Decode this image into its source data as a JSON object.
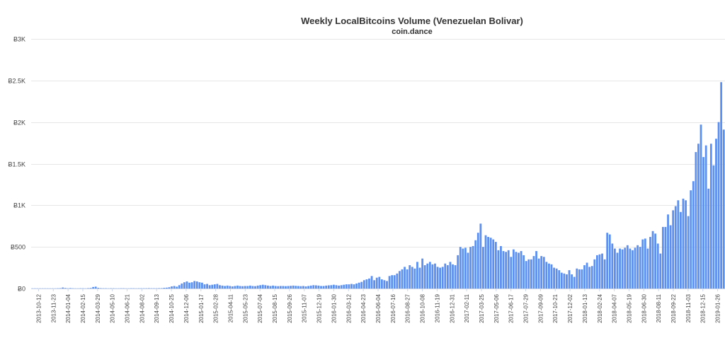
{
  "chart_data": {
    "type": "bar",
    "title": "Weekly LocalBitcoins Volume (Venezuelan Bolivar)",
    "subtitle": "coin.dance",
    "xlabel": "",
    "ylabel": "",
    "ylim": [
      0,
      3000
    ],
    "grid": true,
    "legend": "none",
    "color": "#5b8ff0",
    "y_ticks": [
      {
        "value": 0,
        "label": "Ƀ0"
      },
      {
        "value": 500,
        "label": "Ƀ500"
      },
      {
        "value": 1000,
        "label": "Ƀ1K"
      },
      {
        "value": 1500,
        "label": "Ƀ1.5K"
      },
      {
        "value": 2000,
        "label": "Ƀ2K"
      },
      {
        "value": 2500,
        "label": "Ƀ2.5K"
      },
      {
        "value": 3000,
        "label": "Ƀ3K"
      }
    ],
    "x_tick_labels": [
      "2013-10-12",
      "2013-11-23",
      "2014-01-04",
      "2014-02-15",
      "2014-03-29",
      "2014-05-10",
      "2014-06-21",
      "2014-08-02",
      "2014-09-13",
      "2014-10-25",
      "2014-12-06",
      "2015-01-17",
      "2015-02-28",
      "2015-04-11",
      "2015-05-23",
      "2015-07-04",
      "2015-08-15",
      "2015-09-26",
      "2015-11-07",
      "2015-12-19",
      "2016-01-30",
      "2016-03-12",
      "2016-04-23",
      "2016-06-04",
      "2016-07-16",
      "2016-08-27",
      "2016-10-08",
      "2016-11-19",
      "2016-12-31",
      "2017-02-11",
      "2017-03-25",
      "2017-05-06",
      "2017-06-17",
      "2017-07-29",
      "2017-09-09",
      "2017-10-21",
      "2017-12-02",
      "2018-01-13",
      "2018-02-24",
      "2018-04-07",
      "2018-05-19",
      "2018-06-30",
      "2018-08-11",
      "2018-09-22",
      "2018-11-03",
      "2018-12-15",
      "2019-01-26"
    ],
    "series": [
      {
        "values": [
          2,
          2,
          2,
          2,
          2,
          2,
          2,
          2,
          2,
          2,
          3,
          4,
          12,
          6,
          3,
          5,
          3,
          2,
          2,
          3,
          3,
          2,
          4,
          6,
          18,
          22,
          8,
          4,
          3,
          3,
          2,
          3,
          3,
          2,
          2,
          3,
          3,
          2,
          2,
          3,
          3,
          2,
          3,
          3,
          3,
          3,
          4,
          3,
          3,
          3,
          4,
          4,
          8,
          10,
          15,
          25,
          30,
          22,
          40,
          60,
          75,
          85,
          70,
          75,
          90,
          85,
          75,
          70,
          50,
          55,
          40,
          45,
          50,
          55,
          40,
          35,
          30,
          35,
          30,
          25,
          30,
          35,
          30,
          28,
          30,
          30,
          35,
          30,
          28,
          35,
          40,
          45,
          40,
          35,
          30,
          35,
          30,
          28,
          30,
          30,
          28,
          30,
          32,
          35,
          32,
          30,
          28,
          30,
          25,
          30,
          35,
          40,
          38,
          35,
          30,
          30,
          35,
          38,
          40,
          45,
          40,
          35,
          40,
          45,
          50,
          50,
          55,
          50,
          60,
          70,
          80,
          100,
          110,
          120,
          150,
          100,
          130,
          140,
          110,
          100,
          90,
          150,
          160,
          160,
          180,
          210,
          230,
          260,
          230,
          280,
          260,
          240,
          320,
          250,
          360,
          280,
          300,
          320,
          290,
          300,
          260,
          250,
          260,
          300,
          280,
          320,
          290,
          280,
          400,
          500,
          480,
          490,
          430,
          500,
          510,
          580,
          670,
          780,
          500,
          640,
          620,
          610,
          590,
          560,
          460,
          510,
          450,
          440,
          460,
          380,
          470,
          440,
          430,
          450,
          400,
          330,
          350,
          350,
          390,
          450,
          360,
          390,
          380,
          320,
          300,
          290,
          250,
          240,
          220,
          190,
          180,
          170,
          220,
          170,
          140,
          240,
          230,
          230,
          280,
          310,
          260,
          270,
          350,
          400,
          410,
          420,
          350,
          670,
          650,
          540,
          480,
          430,
          480,
          470,
          490,
          520,
          480,
          460,
          490,
          520,
          500,
          590,
          600,
          480,
          620,
          690,
          660,
          540,
          420,
          740,
          740,
          890,
          760,
          940,
          990,
          1060,
          920,
          1080,
          1060,
          870,
          1180,
          1290,
          1640,
          1740,
          1970,
          1580,
          1720,
          1200,
          1740,
          1480,
          1800,
          2000,
          2480,
          1910
        ]
      }
    ]
  }
}
